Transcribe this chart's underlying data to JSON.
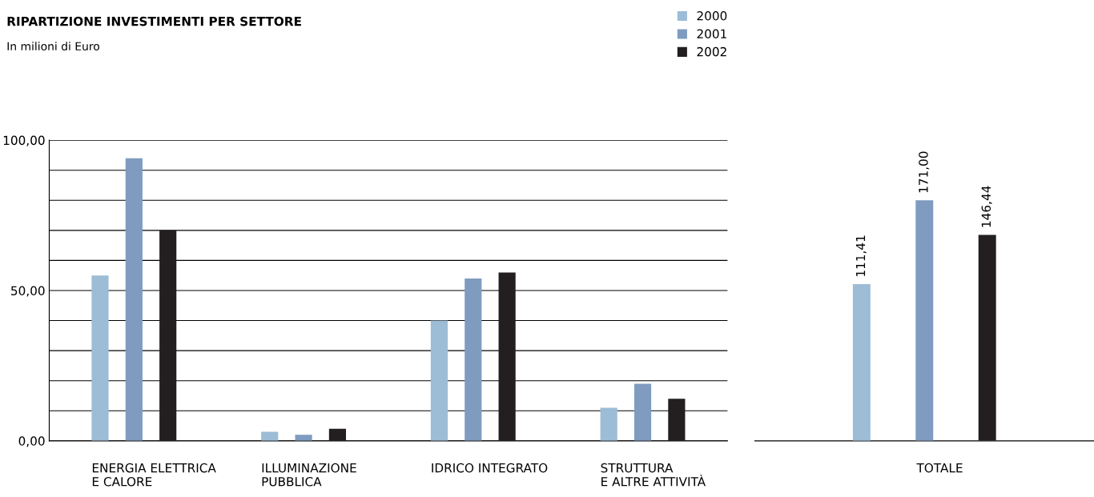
{
  "chart_data": [
    {
      "type": "bar",
      "title": "RIPARTIZIONE INVESTIMENTI PER SETTORE",
      "subtitle": "In milioni di Euro",
      "categories": [
        "ENERGIA ELETTRICA\nE CALORE",
        "ILLUMINAZIONE\nPUBBLICA",
        "IDRICO INTEGRATO",
        "STRUTTURA\nE ALTRE ATTIVITÀ"
      ],
      "series": [
        {
          "name": "2000",
          "color": "#9dbcd6",
          "values": [
            55,
            3,
            40,
            11
          ]
        },
        {
          "name": "2001",
          "color": "#7f9bbf",
          "values": [
            94,
            2,
            54,
            19
          ]
        },
        {
          "name": "2002",
          "color": "#231f20",
          "values": [
            70,
            4,
            56,
            14
          ]
        }
      ],
      "ylim": [
        0,
        100
      ],
      "yticks": [
        {
          "value": 0,
          "label": "0,00"
        },
        {
          "value": 10,
          "label": null
        },
        {
          "value": 20,
          "label": null
        },
        {
          "value": 30,
          "label": null
        },
        {
          "value": 40,
          "label": null
        },
        {
          "value": 50,
          "label": "50,00"
        },
        {
          "value": 60,
          "label": null
        },
        {
          "value": 70,
          "label": null
        },
        {
          "value": 80,
          "label": null
        },
        {
          "value": 90,
          "label": null
        },
        {
          "value": 100,
          "label": "100,00"
        }
      ],
      "grid": "y",
      "legend": "top right"
    },
    {
      "type": "bar",
      "categories": [
        null,
        "TOTALE",
        null
      ],
      "series": [
        {
          "colors": [
            "#9dbcd6",
            "#7f9bbf",
            "#231f20"
          ],
          "values": [
            111.41,
            171.0,
            146.44
          ],
          "value_labels": [
            "111,41",
            "171,00",
            "146,44"
          ]
        }
      ],
      "data_labels": true,
      "tick_labels": "x"
    }
  ]
}
